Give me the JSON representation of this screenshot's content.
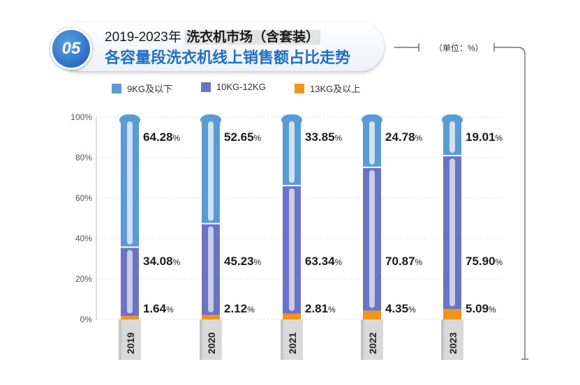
{
  "header": {
    "badge": "05",
    "title_prefix": "2019-2023年 ",
    "title_highlight": "洗衣机市场（含套装）",
    "subtitle": "各容量段洗衣机线上销售额占比走势",
    "unit": "（单位：%）"
  },
  "colors": {
    "series1": "#5a9bd4",
    "series1_light": "#cfe3f4",
    "series2": "#6b74c2",
    "series2_light": "#c9cdea",
    "series3": "#f2931b",
    "title_blue": "#1f6fc6"
  },
  "chart_data": {
    "type": "bar",
    "stacked": true,
    "categories": [
      "2019",
      "2020",
      "2021",
      "2022",
      "2023"
    ],
    "series": [
      {
        "name": "13KG及以上",
        "values": [
          1.64,
          2.12,
          2.81,
          4.35,
          5.09
        ],
        "labels": [
          "1.64%",
          "2.12%",
          "2.81%",
          "4.35%",
          "5.09%"
        ]
      },
      {
        "name": "10KG-12KG",
        "values": [
          34.08,
          45.23,
          63.34,
          70.87,
          75.9
        ],
        "labels": [
          "34.08%",
          "45.23%",
          "63.34%",
          "70.87%",
          "75.90%"
        ]
      },
      {
        "name": "9KG及以下",
        "values": [
          64.28,
          52.65,
          33.85,
          24.78,
          19.01
        ],
        "labels": [
          "64.28%",
          "52.65%",
          "33.85%",
          "24.78%",
          "19.01%"
        ]
      }
    ],
    "legend": [
      "9KG及以下",
      "10KG-12KG",
      "13KG及以上"
    ],
    "yticks": [
      "0%",
      "20%",
      "40%",
      "60%",
      "80%",
      "100%"
    ],
    "ylim": [
      0,
      100
    ],
    "legend_position": "top"
  }
}
